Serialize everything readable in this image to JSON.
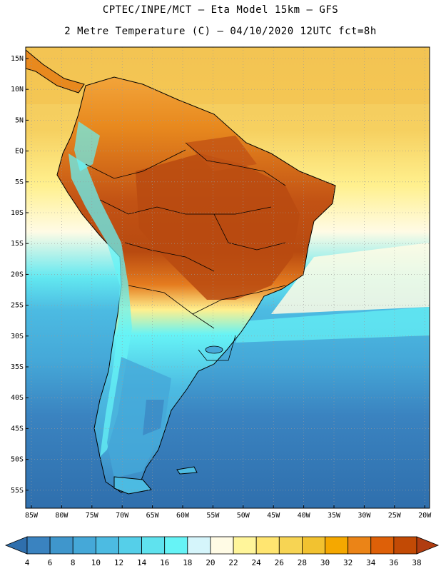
{
  "header": {
    "line1": "CPTEC/INPE/MCT –  Eta Model 15km – GFS",
    "line2": "2 Metre Temperature (C) – 04/10/2020 12UTC fct=8h"
  },
  "axes": {
    "lat_labels": [
      "15N",
      "10N",
      "5N",
      "EQ",
      "5S",
      "10S",
      "15S",
      "20S",
      "25S",
      "30S",
      "35S",
      "40S",
      "45S",
      "50S",
      "55S"
    ],
    "lon_labels": [
      "85W",
      "80W",
      "75W",
      "70W",
      "65W",
      "60W",
      "55W",
      "50W",
      "45W",
      "40W",
      "35W",
      "30W",
      "25W",
      "20W"
    ]
  },
  "colorbar": {
    "labels": [
      "4",
      "6",
      "8",
      "10",
      "12",
      "14",
      "16",
      "18",
      "20",
      "22",
      "24",
      "26",
      "28",
      "30",
      "32",
      "34",
      "36",
      "38"
    ],
    "colors": [
      "#2f6fad",
      "#3a83c0",
      "#3f96cc",
      "#45a8d8",
      "#4cbbe2",
      "#55cfe9",
      "#5fe2ee",
      "#66f3f6",
      "#d5f5fb",
      "#fffbe5",
      "#fff59a",
      "#ffe570",
      "#f7d453",
      "#f2c230",
      "#f5a800",
      "#eb8417",
      "#de6008",
      "#c24a05",
      "#b03c10"
    ]
  },
  "palette": {
    "land_hot": "#b84a10",
    "land_warm": "#e57c1f",
    "land_mid": "#f2a43a",
    "ocean_north": "#f3c85a",
    "ocean_south": "#2f6fad"
  }
}
